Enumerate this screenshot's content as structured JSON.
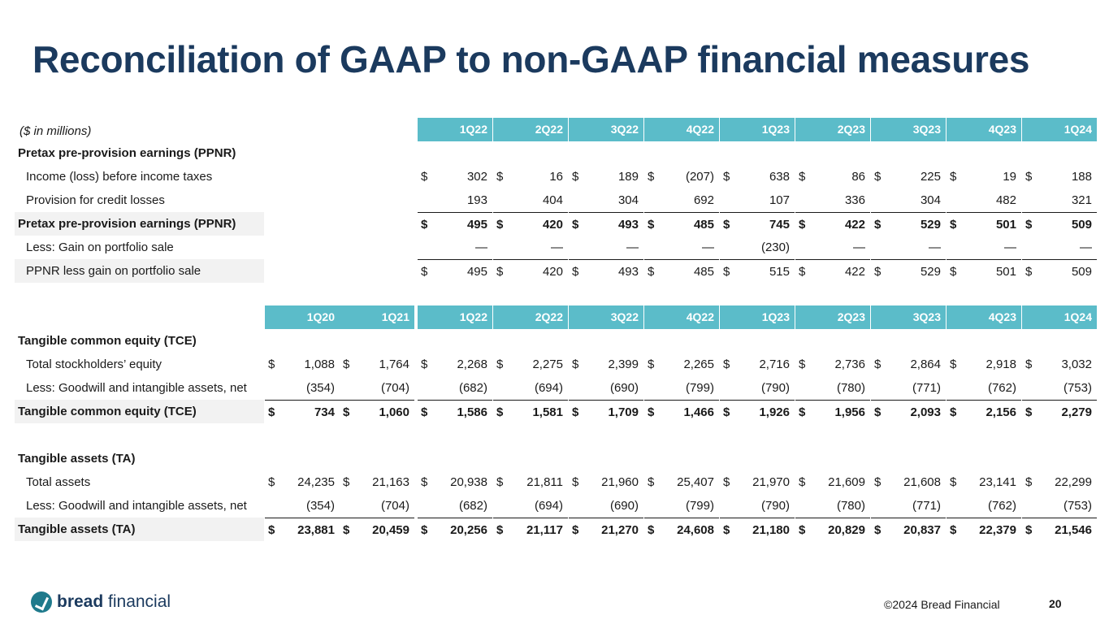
{
  "title": "Reconciliation of GAAP to non-GAAP financial measures",
  "units_label": "($ in millions)",
  "table1": {
    "headers": [
      "1Q22",
      "2Q22",
      "3Q22",
      "4Q22",
      "1Q23",
      "2Q23",
      "3Q23",
      "4Q23",
      "1Q24"
    ],
    "section_title": "Pretax pre-provision earnings (PPNR)",
    "rows": [
      {
        "label": "Income (loss) before income taxes",
        "dollar": "$",
        "values": [
          "302",
          "16",
          "189",
          "(207)",
          "638",
          "86",
          "225",
          "19",
          "188"
        ]
      },
      {
        "label": "Provision for credit losses",
        "dollar": "",
        "values": [
          "193",
          "404",
          "304",
          "692",
          "107",
          "336",
          "304",
          "482",
          "321"
        ]
      },
      {
        "label": "Pretax pre-provision earnings (PPNR)",
        "dollar": "$",
        "values": [
          "495",
          "420",
          "493",
          "485",
          "745",
          "422",
          "529",
          "501",
          "509"
        ]
      },
      {
        "label": "Less: Gain on portfolio sale",
        "dollar": "",
        "values": [
          "—",
          "—",
          "—",
          "—",
          "(230)",
          "—",
          "—",
          "—",
          "—"
        ]
      },
      {
        "label": "PPNR less gain on portfolio sale",
        "dollar": "$",
        "values": [
          "495",
          "420",
          "493",
          "485",
          "515",
          "422",
          "529",
          "501",
          "509"
        ]
      }
    ]
  },
  "table2": {
    "headers": [
      "1Q20",
      "1Q21",
      "1Q22",
      "2Q22",
      "3Q22",
      "4Q22",
      "1Q23",
      "2Q23",
      "3Q23",
      "4Q23",
      "1Q24"
    ],
    "tce_title": "Tangible common equity (TCE)",
    "tce_rows": [
      {
        "label": "Total stockholders’ equity",
        "dollar": "$",
        "values": [
          "1,088",
          "1,764",
          "2,268",
          "2,275",
          "2,399",
          "2,265",
          "2,716",
          "2,736",
          "2,864",
          "2,918",
          "3,032"
        ]
      },
      {
        "label": "Less: Goodwill and intangible assets, net",
        "dollar": "",
        "values": [
          "(354)",
          "(704)",
          "(682)",
          "(694)",
          "(690)",
          "(799)",
          "(790)",
          "(780)",
          "(771)",
          "(762)",
          "(753)"
        ]
      },
      {
        "label": "Tangible common equity (TCE)",
        "dollar": "$",
        "values": [
          "734",
          "1,060",
          "1,586",
          "1,581",
          "1,709",
          "1,466",
          "1,926",
          "1,956",
          "2,093",
          "2,156",
          "2,279"
        ]
      }
    ],
    "ta_title": "Tangible assets (TA)",
    "ta_rows": [
      {
        "label": "Total assets",
        "dollar": "$",
        "values": [
          "24,235",
          "21,163",
          "20,938",
          "21,811",
          "21,960",
          "25,407",
          "21,970",
          "21,609",
          "21,608",
          "23,141",
          "22,299"
        ]
      },
      {
        "label": "Less: Goodwill and intangible assets, net",
        "dollar": "",
        "values": [
          "(354)",
          "(704)",
          "(682)",
          "(694)",
          "(690)",
          "(799)",
          "(790)",
          "(780)",
          "(771)",
          "(762)",
          "(753)"
        ]
      },
      {
        "label": "Tangible assets (TA)",
        "dollar": "$",
        "values": [
          "23,881",
          "20,459",
          "20,256",
          "21,117",
          "21,270",
          "24,608",
          "21,180",
          "20,829",
          "20,837",
          "22,379",
          "21,546"
        ]
      }
    ]
  },
  "footer": {
    "logo_bold": "bread",
    "logo_light": " financial",
    "copyright": "©2024 Bread Financial",
    "page_number": "20"
  }
}
